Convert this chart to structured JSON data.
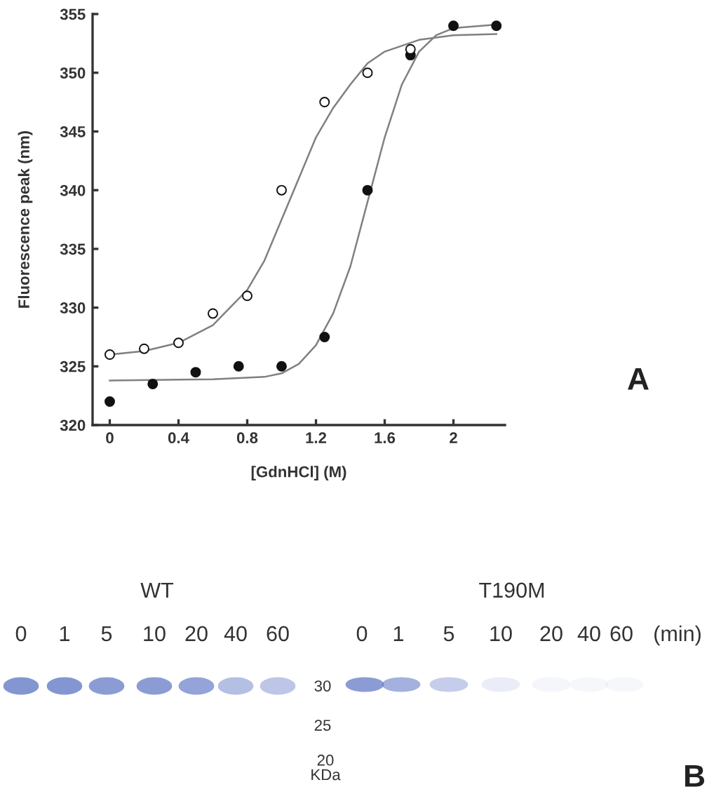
{
  "chart_data": [
    {
      "type": "scatter",
      "xlabel": "[GdnHCl] (M)",
      "ylabel": "Fluorescence peak (nm)",
      "xlim": [
        -0.1,
        2.3
      ],
      "ylim": [
        320,
        355
      ],
      "xticks": [
        0,
        0.4,
        0.8,
        1.2,
        1.6,
        2
      ],
      "yticks": [
        320,
        325,
        330,
        335,
        340,
        345,
        350,
        355
      ],
      "grid": false,
      "legend": false,
      "annotations": [
        "A"
      ],
      "series": [
        {
          "type": "scatter",
          "marker": "circle",
          "color": "#ffffff",
          "x": [
            0,
            0.2,
            0.4,
            0.6,
            0.8,
            1.0,
            1.25,
            1.5,
            1.75
          ],
          "values": [
            326,
            326.5,
            327,
            329.5,
            331,
            340,
            347.5,
            350,
            352
          ]
        },
        {
          "type": "scatter",
          "marker": "circle",
          "color": "#111111",
          "x": [
            0,
            0.25,
            0.5,
            0.75,
            1.0,
            1.25,
            1.5,
            1.75,
            2.0,
            2.25
          ],
          "values": [
            322,
            323.5,
            324.5,
            325,
            325,
            327.5,
            340,
            351.5,
            354,
            354
          ]
        },
        {
          "type": "line",
          "marker": "none",
          "color": "#808080",
          "x": [
            0,
            0.2,
            0.4,
            0.6,
            0.8,
            0.9,
            1.0,
            1.1,
            1.2,
            1.3,
            1.4,
            1.5,
            1.6,
            1.8,
            2.0,
            2.25
          ],
          "values": [
            326.0,
            326.3,
            327.0,
            328.5,
            331.5,
            334,
            337.5,
            341,
            344.5,
            347,
            349,
            350.8,
            351.8,
            352.8,
            353.2,
            353.3
          ]
        },
        {
          "type": "line",
          "marker": "none",
          "color": "#808080",
          "x": [
            0,
            0.6,
            0.9,
            1.0,
            1.1,
            1.2,
            1.3,
            1.4,
            1.5,
            1.6,
            1.7,
            1.8,
            1.9,
            2.0,
            2.25
          ],
          "values": [
            323.8,
            323.9,
            324.1,
            324.4,
            325.2,
            326.8,
            329.5,
            333.5,
            339,
            344.5,
            349,
            351.8,
            353.2,
            353.8,
            354.1
          ]
        }
      ]
    },
    {
      "type": "other",
      "annotations": [
        "WT",
        "T190M",
        "0",
        "1",
        "5",
        "10",
        "20",
        "40",
        "60",
        "0",
        "1",
        "5",
        "10",
        "20",
        "40",
        "60",
        "(min)",
        "30",
        "25",
        "20\nKDa",
        "B"
      ]
    }
  ]
}
